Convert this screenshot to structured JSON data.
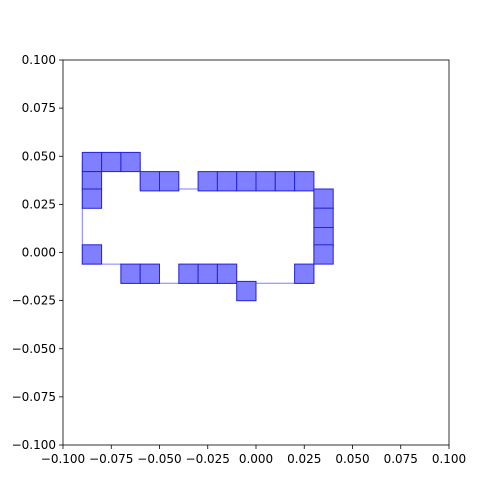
{
  "chart_data": {
    "type": "scatter",
    "title": "",
    "xlabel": "",
    "ylabel": "",
    "xlim": [
      -0.1,
      0.1
    ],
    "ylim": [
      -0.1,
      0.1
    ],
    "grid": false,
    "x_ticks": [
      "−0.100",
      "−0.075",
      "−0.050",
      "−0.025",
      "0.000",
      "0.025",
      "0.050",
      "0.075",
      "0.100"
    ],
    "y_ticks": [
      "−0.100",
      "−0.075",
      "−0.050",
      "−0.025",
      "0.000",
      "0.025",
      "0.050",
      "0.075",
      "0.100"
    ],
    "x_tick_values": [
      -0.1,
      -0.075,
      -0.05,
      -0.025,
      0,
      0.025,
      0.05,
      0.075,
      0.1
    ],
    "y_tick_values": [
      -0.1,
      -0.075,
      -0.05,
      -0.025,
      0,
      0.025,
      0.05,
      0.075,
      0.1
    ],
    "colors": {
      "fill": "#7f7fff",
      "edge": "#2323d6",
      "outline": "#7f7fff"
    },
    "cell_size": 0.01,
    "outline_polygon": [
      [
        -0.09,
        0.047
      ],
      [
        -0.06,
        0.047
      ],
      [
        -0.06,
        0.033
      ],
      [
        0.03,
        0.033
      ],
      [
        0.03,
        -0.016
      ],
      [
        -0.07,
        -0.016
      ],
      [
        -0.07,
        -0.006
      ],
      [
        -0.09,
        -0.006
      ]
    ],
    "cells": [
      [
        -0.09,
        0.047
      ],
      [
        -0.08,
        0.047
      ],
      [
        -0.07,
        0.047
      ],
      [
        -0.09,
        0.037
      ],
      [
        -0.06,
        0.037
      ],
      [
        -0.05,
        0.037
      ],
      [
        -0.03,
        0.037
      ],
      [
        -0.02,
        0.037
      ],
      [
        -0.01,
        0.037
      ],
      [
        0.0,
        0.037
      ],
      [
        0.01,
        0.037
      ],
      [
        0.02,
        0.037
      ],
      [
        -0.09,
        0.028
      ],
      [
        0.03,
        0.028
      ],
      [
        0.03,
        0.018
      ],
      [
        0.03,
        0.008
      ],
      [
        0.03,
        -0.001
      ],
      [
        -0.09,
        -0.001
      ],
      [
        -0.07,
        -0.011
      ],
      [
        -0.06,
        -0.011
      ],
      [
        -0.04,
        -0.011
      ],
      [
        -0.03,
        -0.011
      ],
      [
        -0.02,
        -0.011
      ],
      [
        0.02,
        -0.011
      ],
      [
        -0.01,
        -0.02
      ]
    ]
  }
}
